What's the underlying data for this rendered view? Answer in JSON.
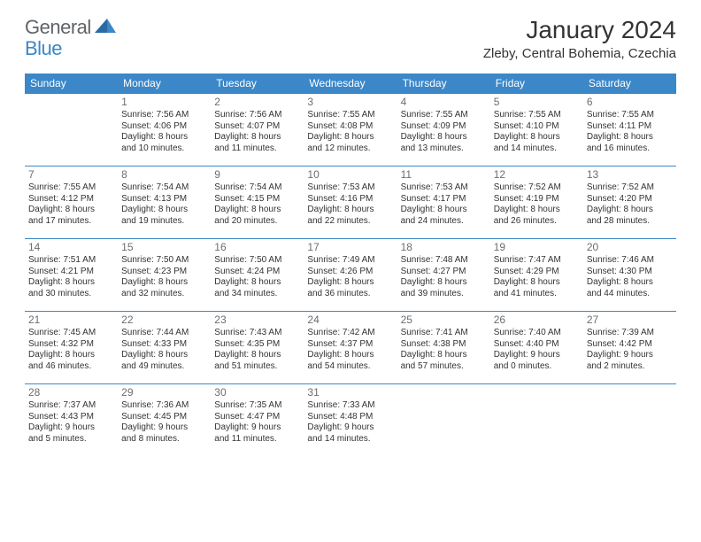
{
  "logo": {
    "general": "General",
    "blue": "Blue"
  },
  "title": "January 2024",
  "location": "Zleby, Central Bohemia, Czechia",
  "colors": {
    "header_bg": "#3b87c8",
    "header_fg": "#ffffff",
    "logo_gray": "#606468",
    "logo_blue": "#3b87c8",
    "text": "#333333",
    "daynum": "#6a6e72",
    "row_border": "#3b87c8",
    "background": "#ffffff"
  },
  "dayHeaders": [
    "Sunday",
    "Monday",
    "Tuesday",
    "Wednesday",
    "Thursday",
    "Friday",
    "Saturday"
  ],
  "weeks": [
    [
      null,
      {
        "n": "1",
        "sr": "7:56 AM",
        "ss": "4:06 PM",
        "d1": "Daylight: 8 hours",
        "d2": "and 10 minutes."
      },
      {
        "n": "2",
        "sr": "7:56 AM",
        "ss": "4:07 PM",
        "d1": "Daylight: 8 hours",
        "d2": "and 11 minutes."
      },
      {
        "n": "3",
        "sr": "7:55 AM",
        "ss": "4:08 PM",
        "d1": "Daylight: 8 hours",
        "d2": "and 12 minutes."
      },
      {
        "n": "4",
        "sr": "7:55 AM",
        "ss": "4:09 PM",
        "d1": "Daylight: 8 hours",
        "d2": "and 13 minutes."
      },
      {
        "n": "5",
        "sr": "7:55 AM",
        "ss": "4:10 PM",
        "d1": "Daylight: 8 hours",
        "d2": "and 14 minutes."
      },
      {
        "n": "6",
        "sr": "7:55 AM",
        "ss": "4:11 PM",
        "d1": "Daylight: 8 hours",
        "d2": "and 16 minutes."
      }
    ],
    [
      {
        "n": "7",
        "sr": "7:55 AM",
        "ss": "4:12 PM",
        "d1": "Daylight: 8 hours",
        "d2": "and 17 minutes."
      },
      {
        "n": "8",
        "sr": "7:54 AM",
        "ss": "4:13 PM",
        "d1": "Daylight: 8 hours",
        "d2": "and 19 minutes."
      },
      {
        "n": "9",
        "sr": "7:54 AM",
        "ss": "4:15 PM",
        "d1": "Daylight: 8 hours",
        "d2": "and 20 minutes."
      },
      {
        "n": "10",
        "sr": "7:53 AM",
        "ss": "4:16 PM",
        "d1": "Daylight: 8 hours",
        "d2": "and 22 minutes."
      },
      {
        "n": "11",
        "sr": "7:53 AM",
        "ss": "4:17 PM",
        "d1": "Daylight: 8 hours",
        "d2": "and 24 minutes."
      },
      {
        "n": "12",
        "sr": "7:52 AM",
        "ss": "4:19 PM",
        "d1": "Daylight: 8 hours",
        "d2": "and 26 minutes."
      },
      {
        "n": "13",
        "sr": "7:52 AM",
        "ss": "4:20 PM",
        "d1": "Daylight: 8 hours",
        "d2": "and 28 minutes."
      }
    ],
    [
      {
        "n": "14",
        "sr": "7:51 AM",
        "ss": "4:21 PM",
        "d1": "Daylight: 8 hours",
        "d2": "and 30 minutes."
      },
      {
        "n": "15",
        "sr": "7:50 AM",
        "ss": "4:23 PM",
        "d1": "Daylight: 8 hours",
        "d2": "and 32 minutes."
      },
      {
        "n": "16",
        "sr": "7:50 AM",
        "ss": "4:24 PM",
        "d1": "Daylight: 8 hours",
        "d2": "and 34 minutes."
      },
      {
        "n": "17",
        "sr": "7:49 AM",
        "ss": "4:26 PM",
        "d1": "Daylight: 8 hours",
        "d2": "and 36 minutes."
      },
      {
        "n": "18",
        "sr": "7:48 AM",
        "ss": "4:27 PM",
        "d1": "Daylight: 8 hours",
        "d2": "and 39 minutes."
      },
      {
        "n": "19",
        "sr": "7:47 AM",
        "ss": "4:29 PM",
        "d1": "Daylight: 8 hours",
        "d2": "and 41 minutes."
      },
      {
        "n": "20",
        "sr": "7:46 AM",
        "ss": "4:30 PM",
        "d1": "Daylight: 8 hours",
        "d2": "and 44 minutes."
      }
    ],
    [
      {
        "n": "21",
        "sr": "7:45 AM",
        "ss": "4:32 PM",
        "d1": "Daylight: 8 hours",
        "d2": "and 46 minutes."
      },
      {
        "n": "22",
        "sr": "7:44 AM",
        "ss": "4:33 PM",
        "d1": "Daylight: 8 hours",
        "d2": "and 49 minutes."
      },
      {
        "n": "23",
        "sr": "7:43 AM",
        "ss": "4:35 PM",
        "d1": "Daylight: 8 hours",
        "d2": "and 51 minutes."
      },
      {
        "n": "24",
        "sr": "7:42 AM",
        "ss": "4:37 PM",
        "d1": "Daylight: 8 hours",
        "d2": "and 54 minutes."
      },
      {
        "n": "25",
        "sr": "7:41 AM",
        "ss": "4:38 PM",
        "d1": "Daylight: 8 hours",
        "d2": "and 57 minutes."
      },
      {
        "n": "26",
        "sr": "7:40 AM",
        "ss": "4:40 PM",
        "d1": "Daylight: 9 hours",
        "d2": "and 0 minutes."
      },
      {
        "n": "27",
        "sr": "7:39 AM",
        "ss": "4:42 PM",
        "d1": "Daylight: 9 hours",
        "d2": "and 2 minutes."
      }
    ],
    [
      {
        "n": "28",
        "sr": "7:37 AM",
        "ss": "4:43 PM",
        "d1": "Daylight: 9 hours",
        "d2": "and 5 minutes."
      },
      {
        "n": "29",
        "sr": "7:36 AM",
        "ss": "4:45 PM",
        "d1": "Daylight: 9 hours",
        "d2": "and 8 minutes."
      },
      {
        "n": "30",
        "sr": "7:35 AM",
        "ss": "4:47 PM",
        "d1": "Daylight: 9 hours",
        "d2": "and 11 minutes."
      },
      {
        "n": "31",
        "sr": "7:33 AM",
        "ss": "4:48 PM",
        "d1": "Daylight: 9 hours",
        "d2": "and 14 minutes."
      },
      null,
      null,
      null
    ]
  ]
}
